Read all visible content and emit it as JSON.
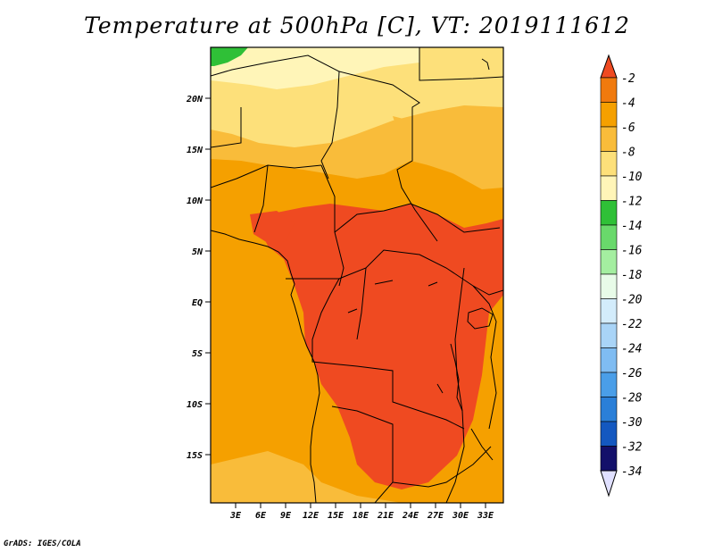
{
  "title": "Temperature at 500hPa [C], VT: 2019111612",
  "credit": "GrADS: IGES/COLA",
  "lat_labels": [
    "20N",
    "15N",
    "10N",
    "5N",
    "EQ",
    "5S",
    "10S",
    "15S"
  ],
  "lon_labels": [
    "3E",
    "6E",
    "9E",
    "12E",
    "15E",
    "18E",
    "21E",
    "24E",
    "27E",
    "30E",
    "33E"
  ],
  "colorbar": {
    "labels": [
      "-2",
      "-4",
      "-6",
      "-8",
      "-10",
      "-12",
      "-14",
      "-16",
      "-18",
      "-20",
      "-22",
      "-24",
      "-26",
      "-28",
      "-30",
      "-32",
      "-34"
    ],
    "colors": [
      "#ef4a21",
      "#f07a0e",
      "#f5a000",
      "#f9bc3a",
      "#fde07a",
      "#fff5b8",
      "#2fc037",
      "#69d96b",
      "#a4eea0",
      "#e8fbe8",
      "#d3ecfb",
      "#a9d4f7",
      "#7fbcf2",
      "#4a9ee8",
      "#2a7fd8",
      "#1458c0",
      "#0a36a2",
      "#13106a",
      "#e0e0ff"
    ]
  },
  "colors": {
    "warm_min": "#ef4a21",
    "warm": "#f5a000",
    "mild": "#f9bc3a",
    "light": "#fde07a",
    "pale": "#fff5b8",
    "green": "#2fc037"
  }
}
